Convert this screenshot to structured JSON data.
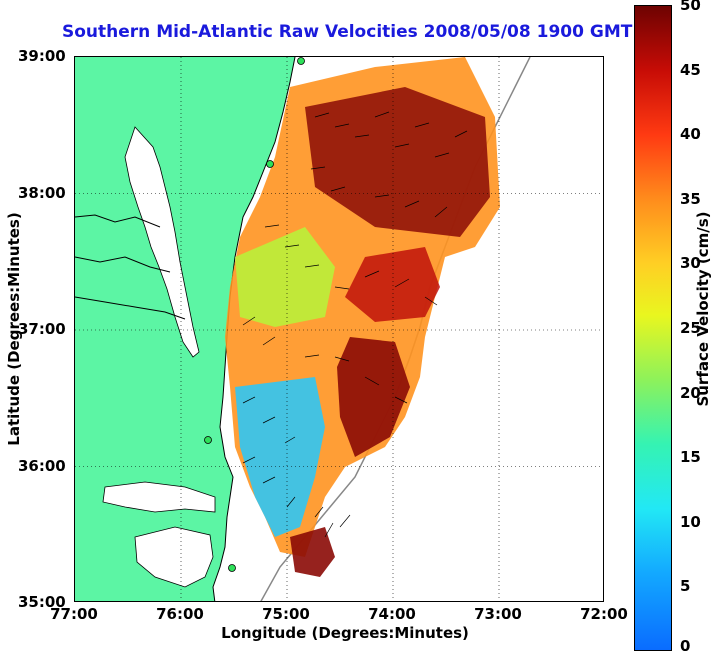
{
  "title": "Southern Mid-Atlantic Raw Velocities 2008/05/08 1900 GMT",
  "x_axis": {
    "label": "Longitude (Degrees:Minutes)",
    "ticks": [
      "77:00",
      "76:00",
      "75:00",
      "74:00",
      "73:00",
      "72:00"
    ]
  },
  "y_axis": {
    "label": "Latitude (Degrees:Minutes)",
    "ticks": [
      "39:00",
      "38:00",
      "37:00",
      "36:00",
      "35:00"
    ]
  },
  "colorbar": {
    "label": "Surface Velocity (cm/s)",
    "ticks": [
      "50",
      "45",
      "40",
      "35",
      "30",
      "25",
      "20",
      "15",
      "10",
      "5",
      "0"
    ],
    "range": [
      0,
      50
    ]
  },
  "map": {
    "lon_range": [
      -77,
      -72
    ],
    "lat_range": [
      35,
      39
    ],
    "grid": true,
    "land_color": "#5cf5a4",
    "water_color": "#ffffff"
  }
}
